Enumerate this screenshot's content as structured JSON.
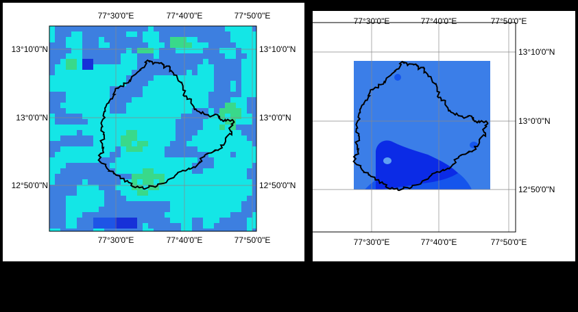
{
  "colors": {
    "page_background": "#000000",
    "panel_background": "#ffffff",
    "class_blue": "#3D7FE0",
    "class_cyan": "#14E6E6",
    "class_green": "#39D98A",
    "class_darkblue": "#1730D8",
    "class_mediumblue": "#1E55E6",
    "contour_light": "#3B7EE8",
    "contour_mid": "#1555EC",
    "contour_dark": "#0B2BE6",
    "boundary": "#000000",
    "gridline": "#888888"
  },
  "left_map": {
    "name": "raster-classification-map",
    "legend": [],
    "top_labels": [
      "77°30'0\"E",
      "77°40'0\"E",
      "77°50'0\"E"
    ],
    "bottom_labels": [
      "77°30'0\"E",
      "77°40'0\"E",
      "77°50'0\"E"
    ],
    "left_labels": [
      "13°10'0\"N",
      "13°0'0\"N",
      "12°50'0\"N"
    ],
    "right_labels": [
      "13°10'0\"N",
      "13°0'0\"N",
      "12°50'0\"N"
    ]
  },
  "right_map": {
    "name": "interpolated-surface-map",
    "top_labels": [
      "77°30'0\"E",
      "77°40'0\"E",
      "77°50'0\"E"
    ],
    "bottom_labels": [
      "77°30'0\"E",
      "77°40'0\"E",
      "77°50'0\"E"
    ],
    "right_labels": [
      "13°10'0\"N",
      "13°0'0\"N",
      "12°50'0\"N"
    ]
  }
}
